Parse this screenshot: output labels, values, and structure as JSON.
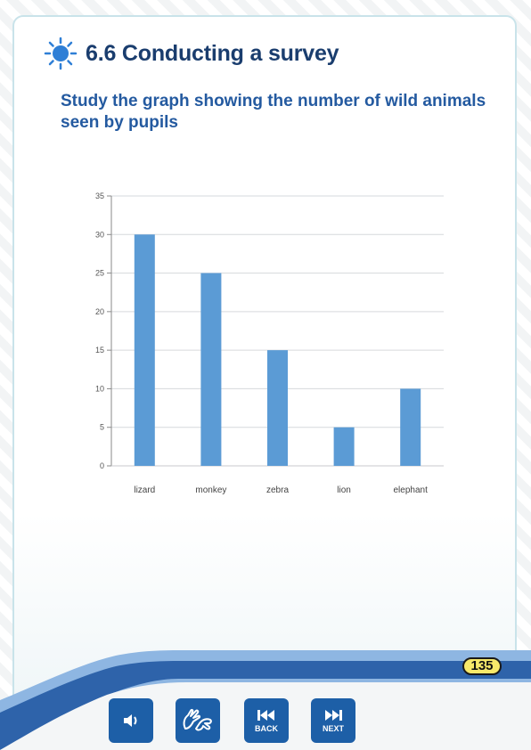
{
  "header": {
    "title": "6.6 Conducting a survey",
    "subtitle": "Study the graph showing the number of wild animals seen by pupils"
  },
  "chart_data": {
    "type": "bar",
    "categories": [
      "lizard",
      "monkey",
      "zebra",
      "lion",
      "elephant"
    ],
    "values": [
      30,
      25,
      15,
      5,
      10
    ],
    "ylim": [
      0,
      35
    ],
    "yticks": [
      0,
      5,
      10,
      15,
      20,
      25,
      30,
      35
    ],
    "grid": true,
    "bar_color": "#5b9bd5"
  },
  "footer": {
    "page_number": "135",
    "back_label": "BACK",
    "next_label": "NEXT",
    "button_color": "#1d5fa7"
  }
}
